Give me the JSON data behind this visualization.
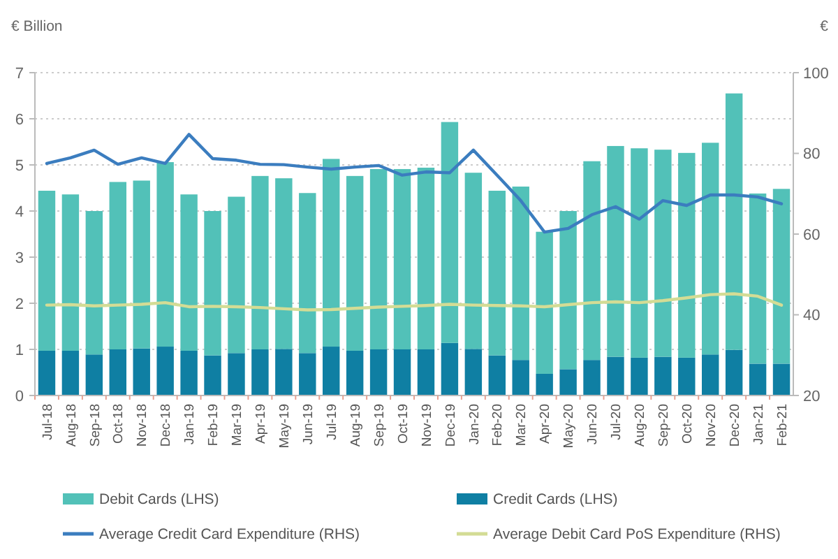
{
  "chart_data": {
    "type": "bar",
    "ylabel": "€ Billion",
    "y2label": "€",
    "categories": [
      "Jul-18",
      "Aug-18",
      "Sep-18",
      "Oct-18",
      "Nov-18",
      "Dec-18",
      "Jan-19",
      "Feb-19",
      "Mar-19",
      "Apr-19",
      "May-19",
      "Jun-19",
      "Jul-19",
      "Aug-19",
      "Sep-19",
      "Oct-19",
      "Nov-19",
      "Dec-19",
      "Jan-20",
      "Feb-20",
      "Mar-20",
      "Apr-20",
      "May-20",
      "Jun-20",
      "Jul-20",
      "Aug-20",
      "Sep-20",
      "Oct-20",
      "Nov-20",
      "Dec-20",
      "Jan-21",
      "Feb-21"
    ],
    "series": [
      {
        "name": "Credit Cards (LHS)",
        "color": "#0f7fa3",
        "values": [
          0.97,
          0.97,
          0.89,
          1.0,
          1.02,
          1.06,
          0.97,
          0.87,
          0.92,
          1.0,
          1.01,
          0.92,
          1.06,
          0.97,
          1.0,
          1.0,
          1.0,
          1.14,
          1.01,
          0.87,
          0.77,
          0.47,
          0.57,
          0.77,
          0.84,
          0.82,
          0.84,
          0.82,
          0.89,
          0.99,
          0.69,
          0.69
        ]
      },
      {
        "name": "Debit Cards (LHS)",
        "color": "#52c1b8",
        "values": [
          3.47,
          3.39,
          3.11,
          3.63,
          3.64,
          4.0,
          3.39,
          3.13,
          3.39,
          3.76,
          3.7,
          3.47,
          4.07,
          3.79,
          3.91,
          3.91,
          3.94,
          4.79,
          3.82,
          3.57,
          3.76,
          3.08,
          3.43,
          4.31,
          4.57,
          4.54,
          4.49,
          4.44,
          4.59,
          5.56,
          3.69,
          3.79
        ]
      },
      {
        "name": "Average Credit Card Expenditure (RHS)",
        "type": "line",
        "axis": "y2",
        "color": "#3b7dbf",
        "values": [
          77.5,
          78.9,
          80.8,
          77.3,
          78.9,
          77.5,
          84.7,
          78.7,
          78.3,
          77.3,
          77.2,
          76.6,
          76.1,
          76.6,
          77.0,
          74.6,
          75.4,
          75.2,
          80.8,
          74.6,
          68.3,
          60.5,
          61.4,
          64.8,
          66.8,
          63.7,
          68.3,
          67.1,
          69.7,
          69.7,
          69.2,
          67.5
        ]
      },
      {
        "name": "Average Debit Card PoS Expenditure (RHS)",
        "type": "line",
        "axis": "y2",
        "color": "#d3dc95",
        "values": [
          42.4,
          42.5,
          42.2,
          42.4,
          42.6,
          43.0,
          42.0,
          42.1,
          42.0,
          41.8,
          41.5,
          41.2,
          41.3,
          41.6,
          41.9,
          42.1,
          42.3,
          42.6,
          42.4,
          42.3,
          42.2,
          42.0,
          42.5,
          43.0,
          43.2,
          43.0,
          43.5,
          44.2,
          45.0,
          45.2,
          44.6,
          42.4
        ]
      }
    ],
    "stacked": true,
    "ylim": [
      0,
      7
    ],
    "yticks": [
      0,
      1,
      2,
      3,
      4,
      5,
      6,
      7
    ],
    "y2lim": [
      20,
      100
    ],
    "y2ticks": [
      20,
      40,
      60,
      80,
      100
    ],
    "grid": "y",
    "legend": "bottom"
  }
}
